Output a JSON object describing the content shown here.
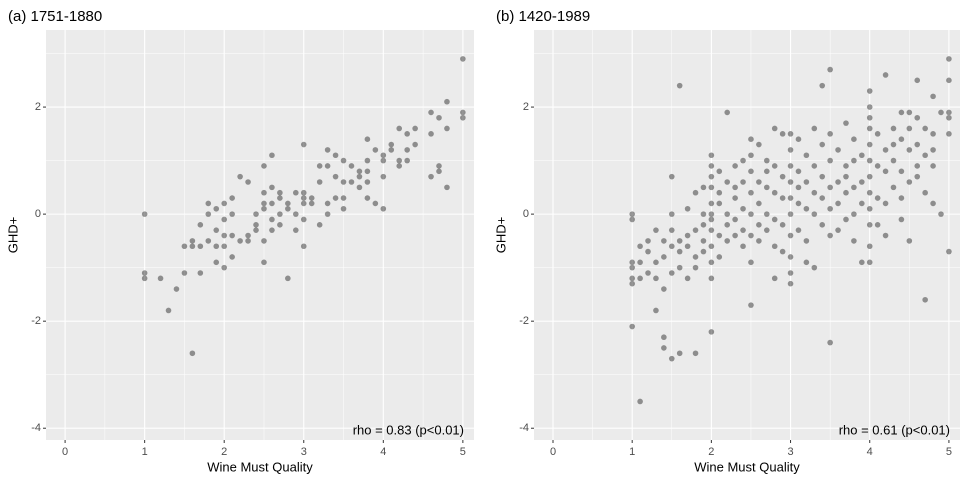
{
  "chart_data": [
    {
      "type": "scatter",
      "title": "(a) 1751-1880",
      "x_label": "Wine Must Quality",
      "y_label": "GHD+",
      "annotation": "rho = 0.83 (p<0.01)",
      "color": "#000000",
      "grid": true,
      "xlim": [
        -0.24,
        5.14
      ],
      "ylim": [
        -4.22,
        3.44
      ],
      "xticks": [
        0,
        1,
        2,
        3,
        4,
        5
      ],
      "yticks": [
        -4,
        -2,
        0,
        2
      ],
      "xminorticks": [
        0.5,
        1.5,
        2.5,
        3.5,
        4.5
      ],
      "yminorticks": [
        -3,
        -1,
        1,
        3
      ],
      "x": [
        1,
        1,
        1,
        1.2,
        1.3,
        1.4,
        1.5,
        1.5,
        1.6,
        1.6,
        1.6,
        1.7,
        1.7,
        1.7,
        1.8,
        1.8,
        1.8,
        1.9,
        1.9,
        1.9,
        1.9,
        2,
        2,
        2,
        2,
        2,
        2.1,
        2.1,
        2.1,
        2.1,
        2.2,
        2.2,
        2.3,
        2.3,
        2.3,
        2.4,
        2.4,
        2.4,
        2.5,
        2.5,
        2.5,
        2.5,
        2.5,
        2.5,
        2.6,
        2.6,
        2.6,
        2.6,
        2.6,
        2.7,
        2.7,
        2.7,
        2.7,
        2.8,
        2.8,
        2.8,
        2.9,
        2.9,
        2.9,
        3,
        3,
        3,
        3,
        3,
        3,
        3.1,
        3.1,
        3.2,
        3.2,
        3.2,
        3.3,
        3.3,
        3.3,
        3.3,
        3.4,
        3.4,
        3.4,
        3.5,
        3.5,
        3.5,
        3.5,
        3.6,
        3.6,
        3.7,
        3.7,
        3.7,
        3.8,
        3.8,
        3.8,
        3.8,
        3.8,
        3.9,
        3.9,
        4,
        4,
        4,
        4,
        4.1,
        4.1,
        4.2,
        4.2,
        4.2,
        4.3,
        4.3,
        4.3,
        4.4,
        4.4,
        4.6,
        4.6,
        4.6,
        4.7,
        4.7,
        4.7,
        4.8,
        4.8,
        4.8,
        5,
        5,
        5
      ],
      "values": [
        0,
        -1.1,
        -1.2,
        -1.2,
        -1.8,
        -1.4,
        -1.1,
        -0.6,
        -0.6,
        -0.5,
        -2.6,
        -0.6,
        -1.1,
        -0.2,
        0.2,
        -0.5,
        0,
        -0.6,
        -0.3,
        -0.9,
        0.1,
        0.2,
        -0.4,
        -0.6,
        -0.1,
        -1,
        0,
        -0.8,
        0.3,
        -0.4,
        0.7,
        -0.5,
        -0.5,
        0.6,
        -0.4,
        0,
        -0.3,
        -0.2,
        0.9,
        0.1,
        -0.9,
        0.4,
        -0.5,
        0.2,
        1.1,
        0.5,
        0.2,
        -0.1,
        -0.3,
        0.4,
        0,
        0.3,
        -0.2,
        0.1,
        -1.2,
        0.2,
        0.4,
        0,
        -0.3,
        1.3,
        0.4,
        0.3,
        -0.1,
        -0.6,
        0.2,
        0.3,
        0.2,
        0.9,
        0.6,
        -0.2,
        1.2,
        0.9,
        0.2,
        0,
        1.1,
        0.7,
        0.3,
        1,
        0.6,
        0.3,
        0.1,
        0.9,
        0.6,
        0.7,
        0.5,
        0.8,
        1.4,
        1,
        0.3,
        0.6,
        0.8,
        0.2,
        1.2,
        1.1,
        1,
        0.7,
        0.1,
        1.3,
        1.2,
        1.6,
        1,
        0.9,
        1.5,
        1.2,
        1,
        1.6,
        1.3,
        1.9,
        1.5,
        0.7,
        1.8,
        0.9,
        0.8,
        2.1,
        1.6,
        0.5,
        2.9,
        1.9,
        1.8
      ]
    },
    {
      "type": "scatter",
      "title": "(b) 1420-1989",
      "x_label": "Wine Must Quality",
      "y_label": "GHD+",
      "annotation": "rho = 0.61 (p<0.01)",
      "color": "#000000",
      "grid": true,
      "xlim": [
        -0.24,
        5.14
      ],
      "ylim": [
        -4.22,
        3.44
      ],
      "xticks": [
        0,
        1,
        2,
        3,
        4,
        5
      ],
      "yticks": [
        -4,
        -2,
        0,
        2
      ],
      "xminorticks": [
        0.5,
        1.5,
        2.5,
        3.5,
        4.5
      ],
      "yminorticks": [
        -3,
        -1,
        1,
        3
      ],
      "x": [
        1,
        1,
        1,
        1,
        1,
        1,
        1,
        1.1,
        1.1,
        1.1,
        1.1,
        1.2,
        1.2,
        1.2,
        1.3,
        1.3,
        1.3,
        1.3,
        1.4,
        1.4,
        1.4,
        1.4,
        1.4,
        1.5,
        1.5,
        1.5,
        1.5,
        1.5,
        1.5,
        1.6,
        1.6,
        1.6,
        1.6,
        1.6,
        1.7,
        1.7,
        1.7,
        1.7,
        1.8,
        1.8,
        1.8,
        1.8,
        1.8,
        1.9,
        1.9,
        1.9,
        1.9,
        1.9,
        2,
        2,
        2,
        2,
        2,
        2,
        2,
        2,
        2,
        2,
        2,
        2,
        2.1,
        2.1,
        2.1,
        2.1,
        2.1,
        2.2,
        2.2,
        2.2,
        2.2,
        2.2,
        2.3,
        2.3,
        2.3,
        2.3,
        2.3,
        2.4,
        2.4,
        2.4,
        2.4,
        2.4,
        2.5,
        2.5,
        2.5,
        2.5,
        2.5,
        2.5,
        2.5,
        2.5,
        2.6,
        2.6,
        2.6,
        2.6,
        2.6,
        2.7,
        2.7,
        2.7,
        2.7,
        2.7,
        2.8,
        2.8,
        2.8,
        2.8,
        2.8,
        2.8,
        2.9,
        2.9,
        2.9,
        2.9,
        2.9,
        3,
        3,
        3,
        3,
        3,
        3,
        3,
        3,
        3,
        3,
        3.1,
        3.1,
        3.1,
        3.1,
        3.1,
        3.2,
        3.2,
        3.2,
        3.2,
        3.2,
        3.3,
        3.3,
        3.3,
        3.3,
        3.3,
        3.4,
        3.4,
        3.4,
        3.4,
        3.4,
        3.5,
        3.5,
        3.5,
        3.5,
        3.5,
        3.5,
        3.5,
        3.6,
        3.6,
        3.6,
        3.6,
        3.7,
        3.7,
        3.7,
        3.7,
        3.7,
        3.8,
        3.8,
        3.8,
        3.8,
        3.8,
        3.9,
        3.9,
        3.9,
        3.9,
        4,
        4,
        4,
        4,
        4,
        4,
        4,
        4,
        4,
        4,
        4,
        4,
        4.1,
        4.1,
        4.1,
        4.1,
        4.2,
        4.2,
        4.2,
        4.2,
        4.2,
        4.3,
        4.3,
        4.3,
        4.3,
        4.4,
        4.4,
        4.4,
        4.4,
        4.4,
        4.5,
        4.5,
        4.5,
        4.5,
        4.5,
        4.6,
        4.6,
        4.6,
        4.6,
        4.6,
        4.7,
        4.7,
        4.7,
        4.7,
        4.8,
        4.8,
        4.8,
        4.8,
        4.8,
        4.9,
        4.9,
        5,
        5,
        5,
        5,
        5,
        5
      ],
      "values": [
        -2.1,
        -1.2,
        -1,
        -0.9,
        0,
        -0.1,
        -1.3,
        -1.2,
        -3.5,
        -0.9,
        -0.6,
        -0.5,
        -1.1,
        -0.7,
        -0.3,
        -1.8,
        -0.9,
        -1.2,
        -1.4,
        -2.3,
        -2.5,
        -0.5,
        -0.8,
        -0.3,
        0,
        -0.6,
        -1.1,
        -2.7,
        0.7,
        2.4,
        -0.5,
        -0.7,
        -2.6,
        -1,
        -0.4,
        -0.6,
        -1.2,
        0.1,
        -2.6,
        -0.3,
        -0.8,
        0.4,
        -1,
        0.5,
        -0.5,
        0,
        -0.7,
        -0.2,
        1.1,
        0.9,
        0.5,
        0.2,
        0,
        -0.3,
        -0.6,
        -0.9,
        -1.2,
        -2.2,
        0.7,
        -0.1,
        0.8,
        0.2,
        -0.4,
        -0.8,
        0.4,
        1.9,
        0.6,
        0,
        -0.5,
        -0.2,
        0.9,
        0.3,
        -0.4,
        -0.1,
        0.5,
        1,
        0.6,
        0.1,
        -0.3,
        -0.6,
        1.4,
        0.8,
        0.4,
        0,
        -0.4,
        -0.9,
        -1.7,
        1.1,
        1.3,
        0.6,
        0.2,
        -0.2,
        -0.5,
        1,
        0.5,
        0,
        -0.3,
        0.8,
        0.9,
        0.4,
        -0.1,
        -0.6,
        -1.2,
        1.6,
        1.5,
        0.7,
        0.3,
        -0.2,
        -0.7,
        1.5,
        1.2,
        0.9,
        0.6,
        0.3,
        0,
        -0.4,
        -0.8,
        -1.3,
        -1.1,
        1.4,
        0.8,
        0.2,
        -0.3,
        0.5,
        1.1,
        0.6,
        0.1,
        -0.5,
        -0.9,
        1.6,
        0.9,
        0.4,
        0,
        -1,
        1.3,
        0.7,
        0.3,
        -0.2,
        2.4,
        2.7,
        1.5,
        1,
        0.5,
        0.1,
        -0.4,
        -2.4,
        1.2,
        0.6,
        0.2,
        -0.3,
        1.7,
        0.9,
        0.4,
        -0.1,
        0.7,
        1.4,
        1,
        0.5,
        0,
        -0.5,
        1.1,
        0.6,
        0.2,
        -0.9,
        2.3,
        2,
        1.6,
        1.3,
        1,
        0.7,
        0.4,
        0.1,
        -0.2,
        -0.6,
        -0.9,
        1.8,
        1.5,
        0.9,
        0.3,
        -0.2,
        2.6,
        1.2,
        0.8,
        0.2,
        -0.4,
        1.6,
        1,
        0.5,
        1.3,
        1.9,
        1.4,
        0.8,
        0.3,
        -0.1,
        1.6,
        1.2,
        0.6,
        -0.5,
        1.9,
        2.5,
        1.8,
        1.3,
        0.7,
        0.9,
        1.6,
        1.1,
        0.4,
        -1.6,
        2.2,
        1.5,
        0.9,
        0.2,
        1.2,
        1.9,
        0,
        2.9,
        2.5,
        1.9,
        1.5,
        -0.7,
        1.8
      ]
    }
  ]
}
